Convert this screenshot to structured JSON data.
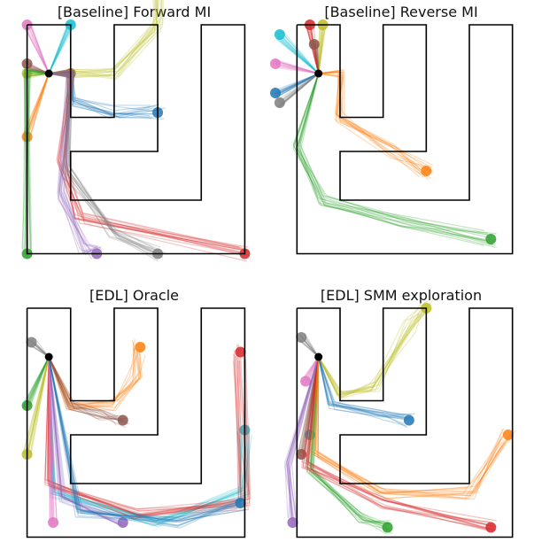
{
  "panels": [
    {
      "title": "[Baseline] Forward MI",
      "bundles": [
        {
          "color": "#e377c2",
          "to": [
            0,
            1.0
          ]
        },
        {
          "color": "#17becf",
          "to": [
            1.0,
            1.0
          ]
        },
        {
          "color": "#8c564b",
          "to": [
            0,
            0.2
          ]
        },
        {
          "color": "#bcbd22",
          "to": [
            0,
            0.0
          ]
        },
        {
          "color": "#8c564b",
          "to": [
            1.0,
            0.0
          ]
        },
        {
          "color": "#bcbd22",
          "via": [
            [
              1.0,
              0.0
            ],
            [
              2.0,
              0.0
            ],
            [
              3.0,
              1.0
            ],
            [
              3.0,
              2.2
            ]
          ]
        },
        {
          "color": "#1f77b4",
          "via": [
            [
              1.0,
              0.0
            ],
            [
              1.0,
              -0.6
            ],
            [
              2.0,
              -0.8
            ],
            [
              3.0,
              -0.8
            ]
          ]
        },
        {
          "color": "#ff7f0e",
          "to": [
            0,
            -1.3
          ]
        },
        {
          "color": "#2ca02c",
          "via": [
            [
              0,
              0.0
            ],
            [
              0,
              -3.7
            ]
          ]
        },
        {
          "color": "#d62728",
          "via": [
            [
              1.0,
              0.0
            ],
            [
              0.8,
              -1.8
            ],
            [
              1.2,
              -3.0
            ],
            [
              5.0,
              -3.7
            ]
          ]
        },
        {
          "color": "#9467bd",
          "via": [
            [
              1.0,
              0.0
            ],
            [
              0.8,
              -2.5
            ],
            [
              1.3,
              -3.6
            ],
            [
              1.6,
              -3.7
            ]
          ]
        },
        {
          "color": "#7f7f7f",
          "via": [
            [
              1.0,
              0.0
            ],
            [
              0.9,
              -2.0
            ],
            [
              2.0,
              -3.3
            ],
            [
              3.0,
              -3.7
            ]
          ]
        }
      ]
    },
    {
      "title": "[Baseline] Reverse MI",
      "bundles": [
        {
          "color": "#d62728",
          "to": [
            0.3,
            1.0
          ]
        },
        {
          "color": "#17becf",
          "to": [
            -0.4,
            0.8
          ]
        },
        {
          "color": "#e377c2",
          "to": [
            -0.5,
            0.2
          ]
        },
        {
          "color": "#bcbd22",
          "to": [
            0.6,
            1.0
          ]
        },
        {
          "color": "#1f77b4",
          "to": [
            -0.5,
            -0.4
          ]
        },
        {
          "color": "#7f7f7f",
          "to": [
            -0.4,
            -0.6
          ]
        },
        {
          "color": "#8c564b",
          "to": [
            0.4,
            0.6
          ]
        },
        {
          "color": "#ff7f0e",
          "via": [
            [
              1.0,
              0.0
            ],
            [
              1.0,
              -0.9
            ],
            [
              2.2,
              -1.6
            ],
            [
              3.0,
              -2.0
            ]
          ]
        },
        {
          "color": "#2ca02c",
          "via": [
            [
              0.0,
              -1.5
            ],
            [
              0.6,
              -2.6
            ],
            [
              2.5,
              -3.0
            ],
            [
              4.5,
              -3.4
            ]
          ]
        }
      ]
    },
    {
      "title": "[EDL] Oracle",
      "bundles": [
        {
          "color": "#7f7f7f",
          "to": [
            0.1,
            0.3
          ]
        },
        {
          "color": "#ff7f0e",
          "via": [
            [
              1.0,
              -1.0
            ],
            [
              2.0,
              -1.0
            ],
            [
              2.5,
              -0.4
            ],
            [
              2.6,
              0.2
            ]
          ]
        },
        {
          "color": "#8c564b",
          "via": [
            [
              1.0,
              -1.0
            ],
            [
              1.7,
              -1.2
            ],
            [
              2.2,
              -1.3
            ]
          ]
        },
        {
          "color": "#2ca02c",
          "to": [
            0.0,
            -1.0
          ]
        },
        {
          "color": "#17becf",
          "via": [
            [
              0.6,
              -2.8
            ],
            [
              3.0,
              -3.4
            ],
            [
              5.0,
              -2.8
            ],
            [
              5.0,
              -1.5
            ]
          ]
        },
        {
          "color": "#d62728",
          "via": [
            [
              0.5,
              -2.6
            ],
            [
              2.5,
              -3.2
            ],
            [
              5.0,
              -3.0
            ],
            [
              4.9,
              0.1
            ]
          ]
        },
        {
          "color": "#bcbd22",
          "to": [
            0.0,
            -2.0
          ]
        },
        {
          "color": "#e377c2",
          "to": [
            0.6,
            -3.4
          ]
        },
        {
          "color": "#9467bd",
          "via": [
            [
              0.8,
              -2.9
            ],
            [
              2.2,
              -3.4
            ]
          ]
        },
        {
          "color": "#1f77b4",
          "via": [
            [
              1.2,
              -3.2
            ],
            [
              3.5,
              -3.4
            ],
            [
              4.9,
              -3.0
            ]
          ]
        }
      ]
    },
    {
      "title": "[EDL] SMM exploration",
      "bundles": [
        {
          "color": "#7f7f7f",
          "to": [
            0.1,
            0.4
          ]
        },
        {
          "color": "#bcbd22",
          "via": [
            [
              1.0,
              -0.8
            ],
            [
              1.8,
              -0.6
            ],
            [
              2.6,
              0.6
            ],
            [
              3.0,
              1.0
            ]
          ]
        },
        {
          "color": "#1f77b4",
          "via": [
            [
              0.8,
              -1.0
            ],
            [
              2.0,
              -1.2
            ],
            [
              2.6,
              -1.3
            ]
          ]
        },
        {
          "color": "#e377c2",
          "to": [
            0.2,
            -0.5
          ]
        },
        {
          "color": "#17becf",
          "to": [
            0.3,
            -1.6
          ]
        },
        {
          "color": "#8c564b",
          "to": [
            0.1,
            -2.0
          ]
        },
        {
          "color": "#9467bd",
          "via": [
            [
              -0.2,
              -2.2
            ],
            [
              -0.1,
              -3.4
            ]
          ]
        },
        {
          "color": "#2ca02c",
          "via": [
            [
              0.3,
              -2.3
            ],
            [
              1.5,
              -3.3
            ],
            [
              2.1,
              -3.5
            ]
          ]
        },
        {
          "color": "#d62728",
          "via": [
            [
              0.2,
              -2.2
            ],
            [
              2.0,
              -3.0
            ],
            [
              4.5,
              -3.5
            ]
          ]
        },
        {
          "color": "#ff7f0e",
          "via": [
            [
              0.4,
              -2.0
            ],
            [
              2.0,
              -2.8
            ],
            [
              4.0,
              -2.8
            ],
            [
              4.9,
              -1.6
            ]
          ]
        }
      ]
    }
  ]
}
